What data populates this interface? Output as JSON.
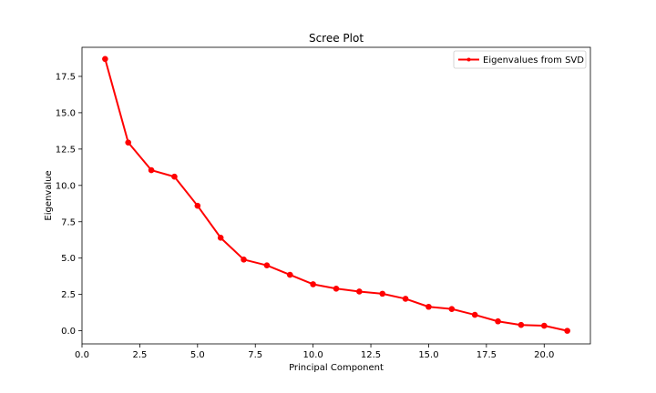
{
  "chart_data": {
    "type": "line",
    "title": "Scree Plot",
    "xlabel": "Principal Component",
    "ylabel": "Eigenvalue",
    "xlim": [
      0,
      22
    ],
    "ylim": [
      -0.9,
      19.5
    ],
    "xticks": [
      0.0,
      2.5,
      5.0,
      7.5,
      10.0,
      12.5,
      15.0,
      17.5,
      20.0
    ],
    "xtick_labels": [
      "0.0",
      "2.5",
      "5.0",
      "7.5",
      "10.0",
      "12.5",
      "15.0",
      "17.5",
      "20.0"
    ],
    "yticks": [
      0.0,
      2.5,
      5.0,
      7.5,
      10.0,
      12.5,
      15.0,
      17.5
    ],
    "ytick_labels": [
      "0.0",
      "2.5",
      "5.0",
      "7.5",
      "10.0",
      "12.5",
      "15.0",
      "17.5"
    ],
    "grid": false,
    "legend_position": "top-right",
    "series": [
      {
        "name": "Eigenvalues from SVD",
        "color": "#ff0000",
        "marker": "circle",
        "x": [
          1,
          2,
          3,
          4,
          5,
          6,
          7,
          8,
          9,
          10,
          11,
          12,
          13,
          14,
          15,
          16,
          17,
          18,
          19,
          20,
          21
        ],
        "y": [
          18.7,
          12.95,
          11.05,
          10.6,
          8.6,
          6.4,
          4.9,
          4.5,
          3.85,
          3.2,
          2.9,
          2.7,
          2.55,
          2.2,
          1.65,
          1.5,
          1.1,
          0.65,
          0.4,
          0.35,
          0.0
        ]
      }
    ]
  }
}
